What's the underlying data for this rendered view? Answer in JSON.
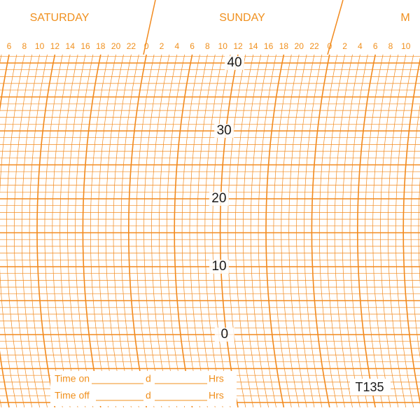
{
  "header": {
    "days": [
      "SATURDAY",
      "SUNDAY",
      "M"
    ],
    "hours": [
      6,
      8,
      10,
      12,
      14,
      16,
      18,
      20,
      22,
      0,
      2,
      4,
      6,
      8,
      10,
      12,
      14,
      16,
      18,
      20,
      22,
      0,
      2,
      4,
      6,
      8,
      10
    ]
  },
  "scale": {
    "labels": [
      40,
      30,
      20,
      10,
      0
    ]
  },
  "form": {
    "rows": [
      {
        "label": "Time on",
        "day_unit": "d",
        "hour_unit": "Hrs"
      },
      {
        "label": "Time off",
        "day_unit": "d",
        "hour_unit": "Hrs"
      }
    ]
  },
  "model": "T135"
}
